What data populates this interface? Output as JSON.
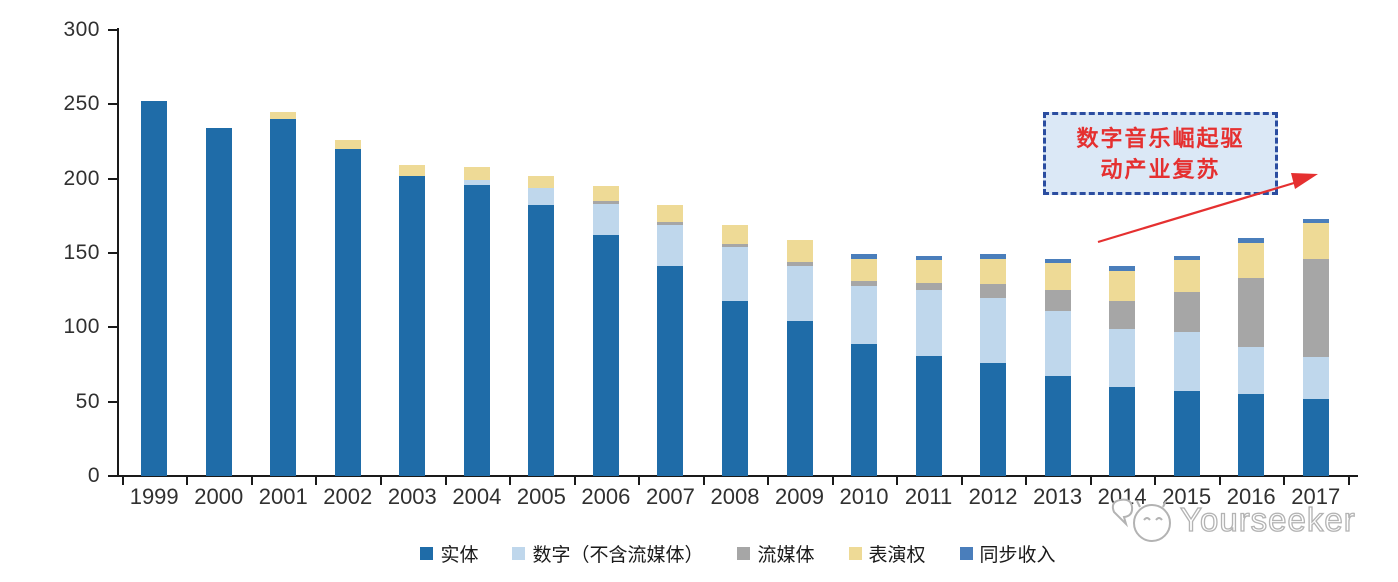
{
  "chart_data": {
    "type": "bar",
    "stacked": true,
    "title": "",
    "xlabel": "",
    "ylabel": "",
    "ylim": [
      0,
      300
    ],
    "yticks": [
      0,
      50,
      100,
      150,
      200,
      250,
      300
    ],
    "grid": false,
    "legend_position": "bottom",
    "categories": [
      "1999",
      "2000",
      "2001",
      "2002",
      "2003",
      "2004",
      "2005",
      "2006",
      "2007",
      "2008",
      "2009",
      "2010",
      "2011",
      "2012",
      "2013",
      "2014",
      "2015",
      "2016",
      "2017"
    ],
    "series": [
      {
        "name": "实体",
        "color": "#1f6ca8",
        "values": [
          252,
          234,
          240,
          220,
          202,
          196,
          182,
          162,
          141,
          118,
          104,
          89,
          81,
          76,
          67,
          60,
          57,
          55,
          52
        ]
      },
      {
        "name": "数字（不含流媒体）",
        "color": "#bfd7ec",
        "values": [
          0,
          0,
          0,
          0,
          0,
          3,
          12,
          21,
          28,
          36,
          37,
          39,
          44,
          44,
          44,
          39,
          40,
          32,
          28
        ]
      },
      {
        "name": "流媒体",
        "color": "#a6a6a6",
        "values": [
          0,
          0,
          0,
          0,
          0,
          0,
          0,
          2,
          2,
          2,
          3,
          3,
          5,
          9,
          14,
          19,
          27,
          46,
          66
        ]
      },
      {
        "name": "表演权",
        "color": "#eeda96",
        "values": [
          0,
          0,
          5,
          6,
          7,
          9,
          8,
          10,
          11,
          13,
          15,
          15,
          15,
          17,
          18,
          20,
          21,
          24,
          24
        ]
      },
      {
        "name": "同步收入",
        "color": "#4a7ebb",
        "values": [
          0,
          0,
          0,
          0,
          0,
          0,
          0,
          0,
          0,
          0,
          0,
          3,
          3,
          3,
          3,
          3,
          3,
          3,
          3
        ]
      }
    ]
  },
  "annotation": {
    "line1": "数字音乐崛起驱",
    "line2": "动产业复苏",
    "box_fill": "#dbe8f6",
    "border_color": "#2b4da0",
    "text_color": "#e53030",
    "arrow_color": "#e53030"
  },
  "watermark": {
    "text": "Yourseeker"
  }
}
